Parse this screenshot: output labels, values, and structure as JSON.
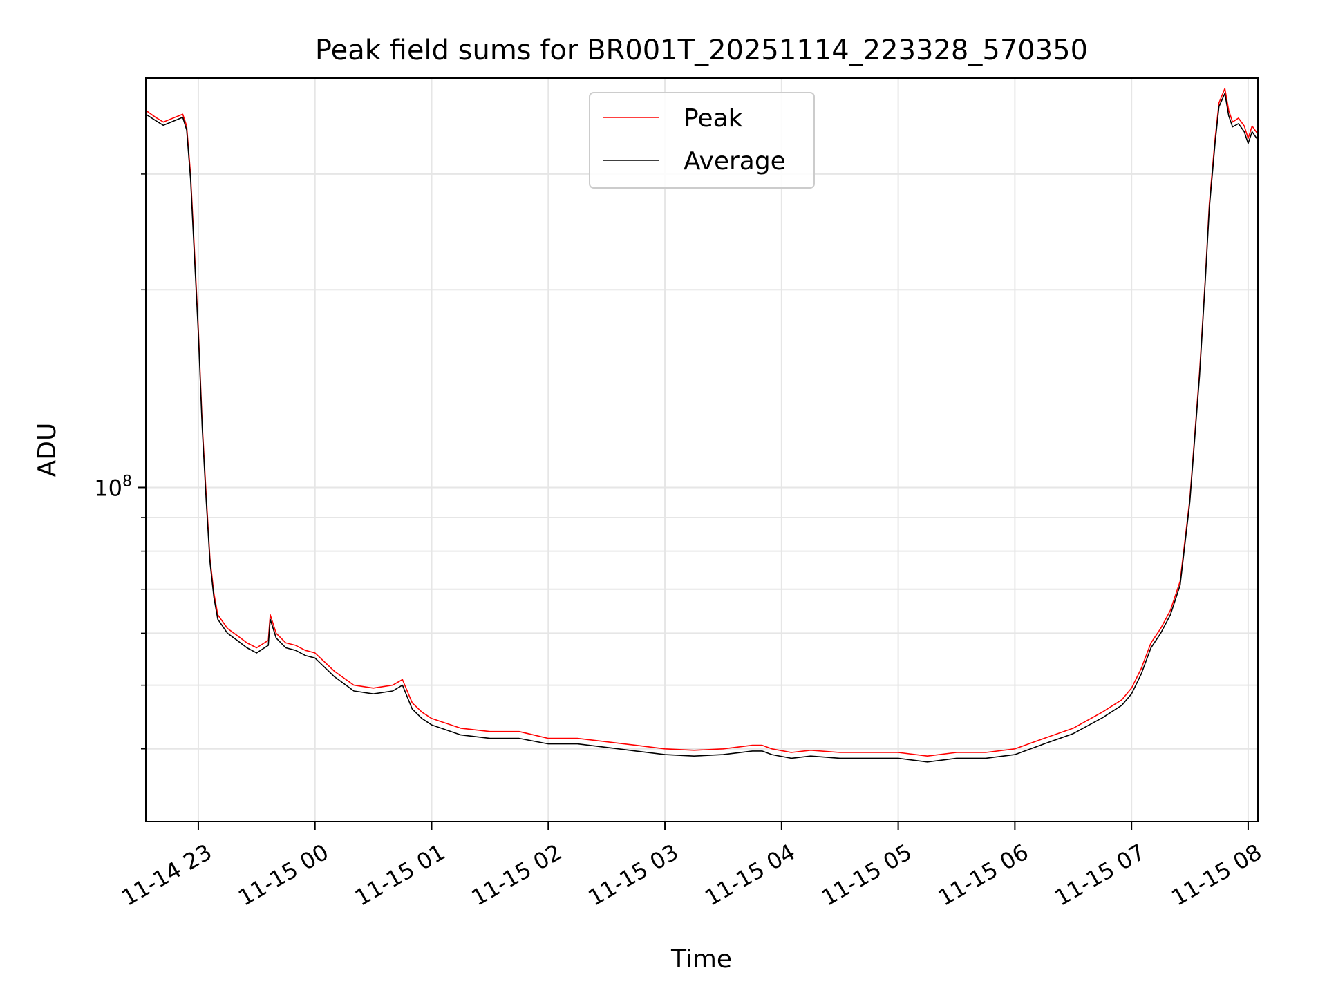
{
  "chart_data": {
    "type": "line",
    "title": "Peak field sums for BR001T_20251114_223328_570350",
    "xlabel": "Time",
    "ylabel": "ADU",
    "yscale": "log",
    "xlim": [
      "2025-11-14 22:33",
      "2025-11-15 08:05"
    ],
    "ylim": [
      31000000,
      420000000
    ],
    "grid": true,
    "legend_position": "upper center",
    "x_ticks": [
      "11-14 23",
      "11-15 00",
      "11-15 01",
      "11-15 02",
      "11-15 03",
      "11-15 04",
      "11-15 05",
      "11-15 06",
      "11-15 07",
      "11-15 08"
    ],
    "x_tick_times": [
      "2025-11-14 23:00",
      "2025-11-15 00:00",
      "2025-11-15 01:00",
      "2025-11-15 02:00",
      "2025-11-15 03:00",
      "2025-11-15 04:00",
      "2025-11-15 05:00",
      "2025-11-15 06:00",
      "2025-11-15 07:00",
      "2025-11-15 08:00"
    ],
    "y_ticks": [
      {
        "base": "10",
        "exp": "8",
        "value": 100000000
      }
    ],
    "y_minor_ticks": [
      40000000,
      50000000,
      60000000,
      70000000,
      80000000,
      90000000,
      200000000,
      300000000
    ],
    "series": [
      {
        "name": "Peak",
        "color": "#ff0000",
        "x": [
          "2025-11-14 22:33",
          "2025-11-14 22:38",
          "2025-11-14 22:42",
          "2025-11-14 22:48",
          "2025-11-14 22:52",
          "2025-11-14 22:54",
          "2025-11-14 22:56",
          "2025-11-14 22:58",
          "2025-11-14 23:00",
          "2025-11-14 23:02",
          "2025-11-14 23:04",
          "2025-11-14 23:06",
          "2025-11-14 23:08",
          "2025-11-14 23:10",
          "2025-11-14 23:15",
          "2025-11-14 23:20",
          "2025-11-14 23:25",
          "2025-11-14 23:30",
          "2025-11-14 23:36",
          "2025-11-14 23:37",
          "2025-11-14 23:40",
          "2025-11-14 23:45",
          "2025-11-14 23:50",
          "2025-11-14 23:55",
          "2025-11-15 00:00",
          "2025-11-15 00:10",
          "2025-11-15 00:20",
          "2025-11-15 00:30",
          "2025-11-15 00:40",
          "2025-11-15 00:45",
          "2025-11-15 00:50",
          "2025-11-15 00:55",
          "2025-11-15 01:00",
          "2025-11-15 01:15",
          "2025-11-15 01:30",
          "2025-11-15 01:45",
          "2025-11-15 02:00",
          "2025-11-15 02:15",
          "2025-11-15 02:30",
          "2025-11-15 02:45",
          "2025-11-15 03:00",
          "2025-11-15 03:15",
          "2025-11-15 03:30",
          "2025-11-15 03:45",
          "2025-11-15 03:50",
          "2025-11-15 03:55",
          "2025-11-15 04:05",
          "2025-11-15 04:15",
          "2025-11-15 04:30",
          "2025-11-15 04:45",
          "2025-11-15 05:00",
          "2025-11-15 05:15",
          "2025-11-15 05:30",
          "2025-11-15 05:45",
          "2025-11-15 06:00",
          "2025-11-15 06:15",
          "2025-11-15 06:30",
          "2025-11-15 06:45",
          "2025-11-15 06:55",
          "2025-11-15 07:00",
          "2025-11-15 07:05",
          "2025-11-15 07:10",
          "2025-11-15 07:15",
          "2025-11-15 07:20",
          "2025-11-15 07:25",
          "2025-11-15 07:30",
          "2025-11-15 07:35",
          "2025-11-15 07:38",
          "2025-11-15 07:40",
          "2025-11-15 07:43",
          "2025-11-15 07:45",
          "2025-11-15 07:48",
          "2025-11-15 07:50",
          "2025-11-15 07:52",
          "2025-11-15 07:55",
          "2025-11-15 07:58",
          "2025-11-15 08:00",
          "2025-11-15 08:02",
          "2025-11-15 08:05"
        ],
        "y": [
          375000000,
          366000000,
          360000000,
          366000000,
          370000000,
          355000000,
          300000000,
          230000000,
          175000000,
          125000000,
          98000000,
          78000000,
          69000000,
          64000000,
          61000000,
          59500000,
          58000000,
          57000000,
          58500000,
          64000000,
          60000000,
          58000000,
          57500000,
          56500000,
          56000000,
          52500000,
          50000000,
          49500000,
          50000000,
          51000000,
          47000000,
          45500000,
          44500000,
          43000000,
          42500000,
          42500000,
          41500000,
          41500000,
          41000000,
          40500000,
          40000000,
          39800000,
          40000000,
          40500000,
          40500000,
          40000000,
          39500000,
          39800000,
          39500000,
          39500000,
          39500000,
          39000000,
          39500000,
          39500000,
          40000000,
          41500000,
          43000000,
          45500000,
          47500000,
          49500000,
          53000000,
          58000000,
          61000000,
          65000000,
          72000000,
          96000000,
          150000000,
          210000000,
          270000000,
          340000000,
          385000000,
          405000000,
          375000000,
          360000000,
          365000000,
          355000000,
          340000000,
          355000000,
          345000000
        ]
      },
      {
        "name": "Average",
        "color": "#000000",
        "x": [
          "2025-11-14 22:33",
          "2025-11-14 22:38",
          "2025-11-14 22:42",
          "2025-11-14 22:48",
          "2025-11-14 22:52",
          "2025-11-14 22:54",
          "2025-11-14 22:56",
          "2025-11-14 22:58",
          "2025-11-14 23:00",
          "2025-11-14 23:02",
          "2025-11-14 23:04",
          "2025-11-14 23:06",
          "2025-11-14 23:08",
          "2025-11-14 23:10",
          "2025-11-14 23:15",
          "2025-11-14 23:20",
          "2025-11-14 23:25",
          "2025-11-14 23:30",
          "2025-11-14 23:36",
          "2025-11-14 23:37",
          "2025-11-14 23:40",
          "2025-11-14 23:45",
          "2025-11-14 23:50",
          "2025-11-14 23:55",
          "2025-11-15 00:00",
          "2025-11-15 00:10",
          "2025-11-15 00:20",
          "2025-11-15 00:30",
          "2025-11-15 00:40",
          "2025-11-15 00:45",
          "2025-11-15 00:50",
          "2025-11-15 00:55",
          "2025-11-15 01:00",
          "2025-11-15 01:15",
          "2025-11-15 01:30",
          "2025-11-15 01:45",
          "2025-11-15 02:00",
          "2025-11-15 02:15",
          "2025-11-15 02:30",
          "2025-11-15 02:45",
          "2025-11-15 03:00",
          "2025-11-15 03:15",
          "2025-11-15 03:30",
          "2025-11-15 03:45",
          "2025-11-15 03:50",
          "2025-11-15 03:55",
          "2025-11-15 04:05",
          "2025-11-15 04:15",
          "2025-11-15 04:30",
          "2025-11-15 04:45",
          "2025-11-15 05:00",
          "2025-11-15 05:15",
          "2025-11-15 05:30",
          "2025-11-15 05:45",
          "2025-11-15 06:00",
          "2025-11-15 06:15",
          "2025-11-15 06:30",
          "2025-11-15 06:45",
          "2025-11-15 06:55",
          "2025-11-15 07:00",
          "2025-11-15 07:05",
          "2025-11-15 07:10",
          "2025-11-15 07:15",
          "2025-11-15 07:20",
          "2025-11-15 07:25",
          "2025-11-15 07:30",
          "2025-11-15 07:35",
          "2025-11-15 07:38",
          "2025-11-15 07:40",
          "2025-11-15 07:43",
          "2025-11-15 07:45",
          "2025-11-15 07:48",
          "2025-11-15 07:50",
          "2025-11-15 07:52",
          "2025-11-15 07:55",
          "2025-11-15 07:58",
          "2025-11-15 08:00",
          "2025-11-15 08:02",
          "2025-11-15 08:05"
        ],
        "y": [
          370000000,
          362000000,
          356000000,
          362000000,
          366000000,
          350000000,
          295000000,
          225000000,
          172000000,
          123000000,
          96000000,
          77000000,
          68000000,
          63000000,
          60000000,
          58500000,
          57000000,
          56000000,
          57500000,
          63000000,
          59000000,
          57000000,
          56500000,
          55500000,
          55000000,
          51500000,
          49000000,
          48500000,
          49000000,
          50000000,
          46000000,
          44500000,
          43500000,
          42000000,
          41500000,
          41500000,
          40700000,
          40700000,
          40200000,
          39700000,
          39200000,
          39000000,
          39200000,
          39700000,
          39700000,
          39200000,
          38700000,
          39000000,
          38700000,
          38700000,
          38700000,
          38200000,
          38700000,
          38700000,
          39200000,
          40700000,
          42200000,
          44600000,
          46600000,
          48500000,
          52000000,
          57000000,
          60000000,
          64000000,
          71000000,
          95000000,
          148000000,
          208000000,
          266000000,
          335000000,
          380000000,
          398000000,
          368000000,
          354000000,
          358000000,
          348000000,
          334000000,
          348000000,
          338000000
        ]
      }
    ]
  }
}
